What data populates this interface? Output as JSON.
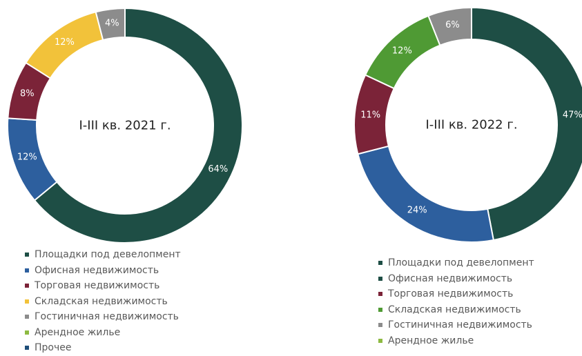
{
  "chart_data": [
    {
      "type": "donut",
      "center_label": "I-III кв. 2021 г.",
      "categories": [
        "Площадки под девелопмент",
        "Офисная недвижимость",
        "Торговая недвижимость",
        "Складская недвижимость",
        "Гостиничная недвижимость",
        "Арендное жилье",
        "Прочее"
      ],
      "values": [
        64,
        12,
        8,
        12,
        4,
        0,
        0
      ],
      "data_labels": [
        "64%",
        "12%",
        "8%",
        "12%",
        "4%",
        "",
        ""
      ],
      "colors": [
        "#1e4e45",
        "#2d5f9e",
        "#7b2338",
        "#f2c23a",
        "#8c8c8c",
        "#8dba41",
        "#1f4e79"
      ],
      "legend_position": "bottom"
    },
    {
      "type": "donut",
      "center_label": "I-III кв. 2022 г.",
      "categories": [
        "Площадки под девелопмент",
        "Офисная недвижимость",
        "Торговая недвижимость",
        "Складская недвижимость",
        "Гостиничная недвижимость",
        "Арендное жилье"
      ],
      "values": [
        47,
        24,
        11,
        12,
        6,
        0
      ],
      "data_labels": [
        "47%",
        "24%",
        "11%",
        "12%",
        "6%",
        ""
      ],
      "colors": [
        "#1e4e45",
        "#2d5f9e",
        "#7b2338",
        "#4f9a34",
        "#8c8c8c",
        "#8dba41"
      ],
      "legend_colors": [
        "#1e4e45",
        "#1e4e45",
        "#7b2338",
        "#4f9a34",
        "#8c8c8c",
        "#8dba41"
      ],
      "legend_position": "bottom"
    }
  ]
}
